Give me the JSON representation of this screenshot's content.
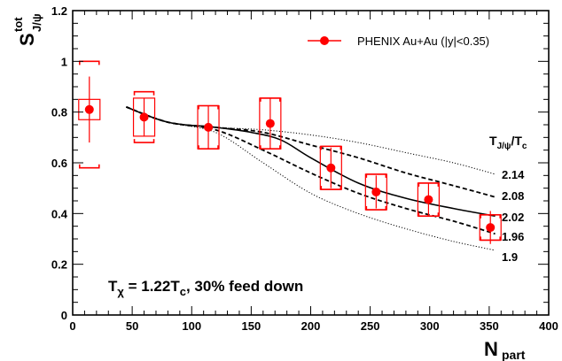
{
  "chart_data": {
    "type": "scatter",
    "xlabel": "N",
    "xlabel_sub": "part",
    "ylabel": "S",
    "ylabel_sup": "tot",
    "ylabel_sub": "J/ψ",
    "xlim": [
      0,
      400
    ],
    "ylim": [
      0,
      1.2
    ],
    "x_ticks": [
      0,
      50,
      100,
      150,
      200,
      250,
      300,
      350,
      400
    ],
    "y_ticks": [
      0,
      0.2,
      0.4,
      0.6,
      0.8,
      1,
      1.2
    ],
    "y_tick_labels": [
      "0",
      "0.2",
      "0.4",
      "0.6",
      "0.8",
      "1",
      "1.2"
    ],
    "grid": false,
    "legend": {
      "position": "top-right",
      "entries": [
        "PHENIX Au+Au (|y|<0.35)"
      ]
    },
    "annotation": {
      "main": "T",
      "main_sub": "χ",
      "rest": " = 1.22T",
      "rest_sub": "c",
      "tail": ", 30% feed down"
    },
    "curve_header": {
      "main": "T",
      "sub": "J/ψ",
      "slash": "/T",
      "sub2": "c"
    },
    "curve_labels": [
      "2.14",
      "2.08",
      "2.02",
      "1.96",
      "1.9"
    ],
    "colors": {
      "data": "#ff0000",
      "curve": "#000000"
    },
    "series": [
      {
        "name": "PHENIX Au+Au (|y|<0.35)",
        "style": "points",
        "x": [
          14,
          60,
          114,
          166,
          217,
          255,
          299,
          351
        ],
        "y": [
          0.81,
          0.78,
          0.74,
          0.755,
          0.58,
          0.485,
          0.455,
          0.345
        ],
        "stat_err": [
          0.13,
          0.075,
          0.085,
          0.1,
          0.08,
          0.065,
          0.065,
          0.065
        ],
        "sys_box": [
          0.04,
          0.075,
          0.085,
          0.1,
          0.085,
          0.07,
          0.065,
          0.05
        ],
        "global_err_up": [
          0.19,
          0.1,
          0.085,
          0.1,
          0.085,
          0.07,
          0.065,
          0.05
        ],
        "global_err_down": [
          0.23,
          0.1,
          0.085,
          0.1,
          0.085,
          0.07,
          0.065,
          0.05
        ]
      },
      {
        "label": "2.14",
        "style": "dotted",
        "x": [
          45,
          80,
          120,
          160,
          200,
          240,
          280,
          320,
          355
        ],
        "y": [
          0.82,
          0.76,
          0.74,
          0.73,
          0.71,
          0.68,
          0.64,
          0.6,
          0.555
        ]
      },
      {
        "label": "2.08",
        "style": "dashed",
        "x": [
          45,
          80,
          120,
          160,
          200,
          240,
          280,
          320,
          355
        ],
        "y": [
          0.82,
          0.76,
          0.74,
          0.72,
          0.67,
          0.62,
          0.56,
          0.51,
          0.465
        ]
      },
      {
        "label": "2.02",
        "style": "solid",
        "x": [
          45,
          80,
          120,
          150,
          175,
          200,
          240,
          280,
          320,
          355
        ],
        "y": [
          0.82,
          0.76,
          0.74,
          0.72,
          0.69,
          0.62,
          0.52,
          0.46,
          0.42,
          0.39
        ]
      },
      {
        "label": "1.96",
        "style": "dashed",
        "x": [
          45,
          80,
          120,
          160,
          200,
          240,
          280,
          320,
          355
        ],
        "y": [
          0.82,
          0.76,
          0.73,
          0.65,
          0.56,
          0.48,
          0.42,
          0.37,
          0.32
        ]
      },
      {
        "label": "1.9",
        "style": "dotted",
        "x": [
          45,
          80,
          120,
          160,
          200,
          240,
          280,
          320,
          355
        ],
        "y": [
          0.82,
          0.76,
          0.72,
          0.6,
          0.48,
          0.4,
          0.34,
          0.29,
          0.255
        ]
      }
    ]
  }
}
